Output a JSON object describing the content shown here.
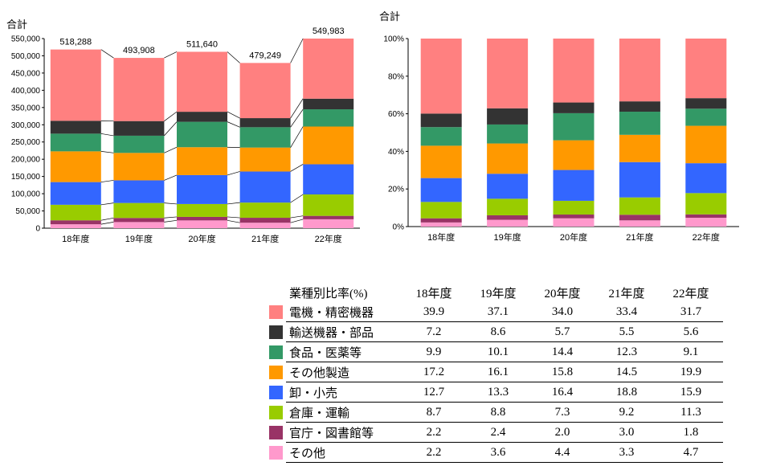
{
  "chart_data": [
    {
      "type": "bar",
      "stacked": true,
      "title": "合計",
      "categories": [
        "18年度",
        "19年度",
        "20年度",
        "21年度",
        "22年度"
      ],
      "ylim": [
        0,
        550000
      ],
      "yticks": [
        "0",
        "50,000",
        "100,000",
        "150,000",
        "200,000",
        "250,000",
        "300,000",
        "350,000",
        "400,000",
        "450,000",
        "500,000",
        "550,000"
      ],
      "totals": [
        518288,
        493908,
        511640,
        479249,
        549983
      ],
      "total_labels": [
        "518,288",
        "493,908",
        "511,640",
        "479,249",
        "549,983"
      ],
      "series_ref": "shared_series"
    },
    {
      "type": "bar",
      "stacked": true,
      "percent": true,
      "title": "合計",
      "categories": [
        "18年度",
        "19年度",
        "20年度",
        "21年度",
        "22年度"
      ],
      "ylim": [
        0,
        100
      ],
      "yticks": [
        "0%",
        "20%",
        "40%",
        "60%",
        "80%",
        "100%"
      ],
      "series_ref": "shared_series"
    }
  ],
  "shared_series": [
    {
      "name": "その他",
      "color": "#ff99cc",
      "values": [
        2.2,
        3.6,
        4.4,
        3.3,
        4.7
      ]
    },
    {
      "name": "官庁・図書館等",
      "color": "#993366",
      "values": [
        2.2,
        2.4,
        2.0,
        3.0,
        1.8
      ]
    },
    {
      "name": "倉庫・運輸",
      "color": "#99cc00",
      "values": [
        8.7,
        8.8,
        7.3,
        9.2,
        11.3
      ]
    },
    {
      "name": "卸・小売",
      "color": "#3366ff",
      "values": [
        12.7,
        13.3,
        16.4,
        18.8,
        15.9
      ]
    },
    {
      "name": "その他製造",
      "color": "#ff9900",
      "values": [
        17.2,
        16.1,
        15.8,
        14.5,
        19.9
      ]
    },
    {
      "name": "食品・医薬等",
      "color": "#339966",
      "values": [
        9.9,
        10.1,
        14.4,
        12.3,
        9.1
      ]
    },
    {
      "name": "輸送機器・部品",
      "color": "#333333",
      "values": [
        7.2,
        8.6,
        5.7,
        5.5,
        5.6
      ]
    },
    {
      "name": "電機・精密機器",
      "color": "#ff8080",
      "values": [
        39.9,
        37.1,
        34.0,
        33.4,
        31.7
      ]
    }
  ],
  "table": {
    "header_label": "業種別比率(%)",
    "columns": [
      "18年度",
      "19年度",
      "20年度",
      "21年度",
      "22年度"
    ],
    "rows": [
      {
        "name": "電機・精密機器",
        "color": "#ff8080",
        "values": [
          "39.9",
          "37.1",
          "34.0",
          "33.4",
          "31.7"
        ]
      },
      {
        "name": "輸送機器・部品",
        "color": "#333333",
        "values": [
          "7.2",
          "8.6",
          "5.7",
          "5.5",
          "5.6"
        ]
      },
      {
        "name": "食品・医薬等",
        "color": "#339966",
        "values": [
          "9.9",
          "10.1",
          "14.4",
          "12.3",
          "9.1"
        ]
      },
      {
        "name": "その他製造",
        "color": "#ff9900",
        "values": [
          "17.2",
          "16.1",
          "15.8",
          "14.5",
          "19.9"
        ]
      },
      {
        "name": "卸・小売",
        "color": "#3366ff",
        "values": [
          "12.7",
          "13.3",
          "16.4",
          "18.8",
          "15.9"
        ]
      },
      {
        "name": "倉庫・運輸",
        "color": "#99cc00",
        "values": [
          "8.7",
          "8.8",
          "7.3",
          "9.2",
          "11.3"
        ]
      },
      {
        "name": "官庁・図書館等",
        "color": "#993366",
        "values": [
          "2.2",
          "2.4",
          "2.0",
          "3.0",
          "1.8"
        ]
      },
      {
        "name": "その他",
        "color": "#ff99cc",
        "values": [
          "2.2",
          "3.6",
          "4.4",
          "3.3",
          "4.7"
        ]
      }
    ]
  }
}
